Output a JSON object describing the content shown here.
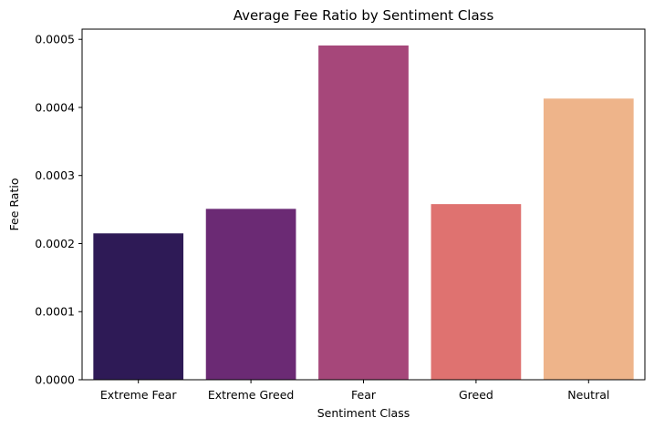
{
  "chart_data": {
    "type": "bar",
    "title": "Average Fee Ratio by Sentiment Class",
    "xlabel": "Sentiment Class",
    "ylabel": "Fee Ratio",
    "categories": [
      "Extreme Fear",
      "Extreme Greed",
      "Fear",
      "Greed",
      "Neutral"
    ],
    "values": [
      0.000215,
      0.000251,
      0.000491,
      0.000258,
      0.000413
    ],
    "colors": [
      "#2e1a56",
      "#6b2a74",
      "#a6477a",
      "#df7270",
      "#eeb48a"
    ],
    "ylim": [
      0,
      0.000515
    ],
    "yticks": [
      0,
      0.0001,
      0.0002,
      0.0003,
      0.0004,
      0.0005
    ],
    "ytick_labels": [
      "0.0000",
      "0.0001",
      "0.0002",
      "0.0003",
      "0.0004",
      "0.0005"
    ],
    "grid": false,
    "legend": "none"
  }
}
